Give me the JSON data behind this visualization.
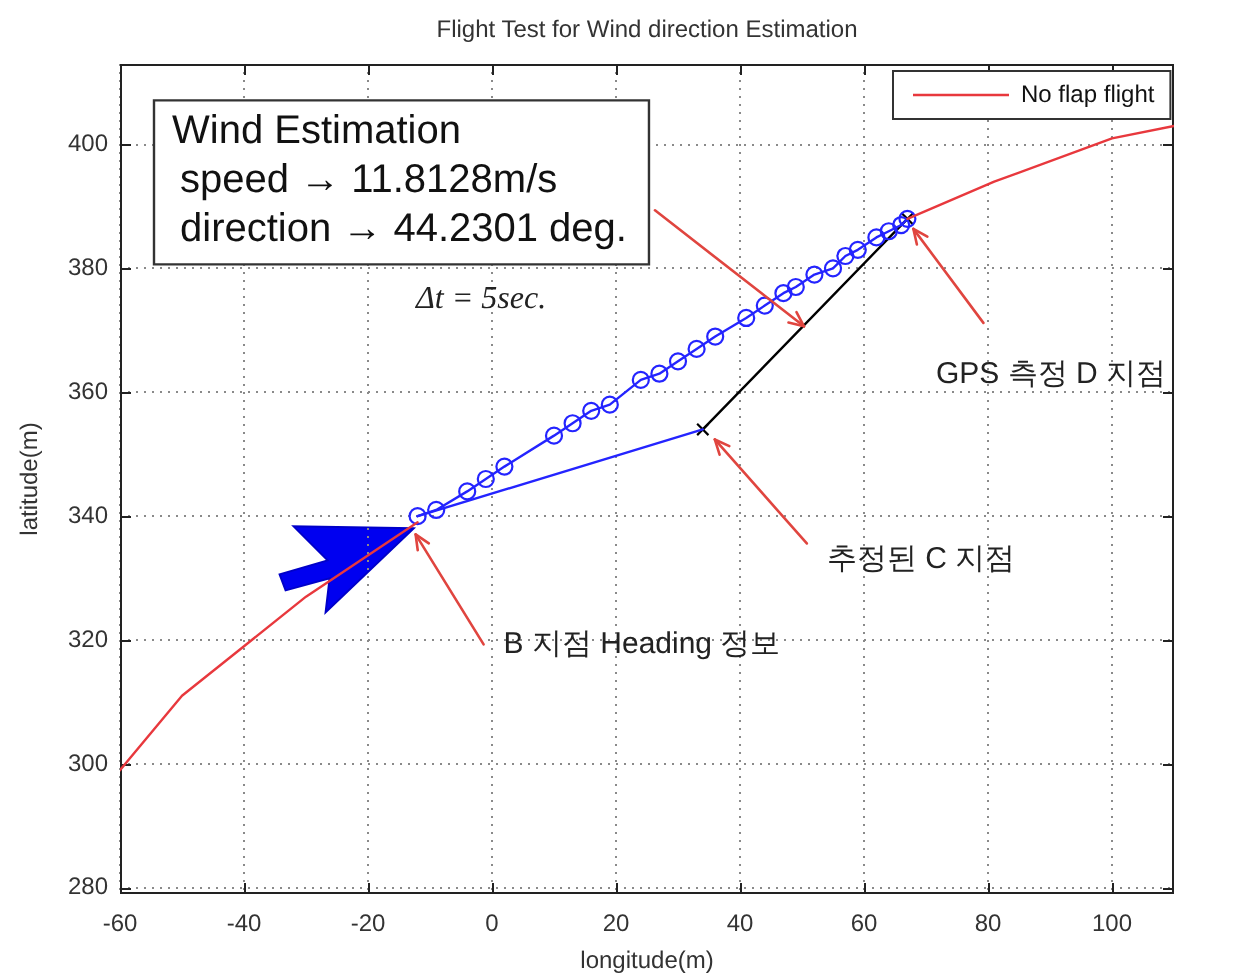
{
  "chart_data": {
    "type": "line",
    "title": "Flight Test for Wind direction Estimation",
    "xlabel": "longitude(m)",
    "ylabel": "latitude(m)",
    "series": [
      {
        "name": "No flap flight",
        "color": "#e8383d",
        "x": [
          -60,
          -50,
          -40,
          -30,
          -12,
          28,
          67,
          81,
          100,
          110
        ],
        "values": [
          299,
          311,
          319,
          327,
          339,
          null,
          388,
          394,
          401,
          403
        ]
      },
      {
        "color": "#2424ff",
        "marker": "circle",
        "x": [
          -12,
          -9,
          -4,
          -1,
          2,
          10,
          13,
          16,
          19,
          24,
          27,
          30,
          33,
          36,
          41,
          44,
          47,
          49,
          52,
          55,
          57,
          59,
          62,
          64,
          66,
          67
        ],
        "values": [
          340,
          341,
          344,
          346,
          348,
          353,
          355,
          357,
          358,
          362,
          363,
          365,
          367,
          369,
          372,
          374,
          376,
          377,
          379,
          380,
          382,
          383,
          385,
          386,
          387,
          388
        ]
      },
      {
        "color": "#2424ff",
        "x": [
          -12,
          34
        ],
        "values": [
          340,
          354
        ]
      },
      {
        "color": "#000000",
        "marker": "cross",
        "x": [
          34,
          67
        ],
        "values": [
          354,
          388
        ]
      }
    ],
    "xlim": [
      -60,
      110
    ],
    "ylim": [
      279,
      413
    ],
    "xticks": [
      -60,
      -40,
      -20,
      0,
      20,
      40,
      60,
      80,
      100
    ],
    "yticks": [
      280,
      300,
      320,
      340,
      360,
      380,
      400
    ],
    "grid": true,
    "legend": "top right",
    "annotations": [
      {
        "text": "Wind Estimation\nspeed → 11.8128m/s\ndirection → 44.2301 deg.",
        "x": 50,
        "y": 370
      },
      "Δt = 5sec.",
      {
        "text": "GPS 측정 D 지점",
        "x": 67,
        "y": 388
      },
      {
        "text": "추정된 C 지점",
        "x": 34,
        "y": 354
      },
      {
        "text": "B 지점 Heading 정보",
        "x": -12,
        "y": 339
      }
    ]
  }
}
